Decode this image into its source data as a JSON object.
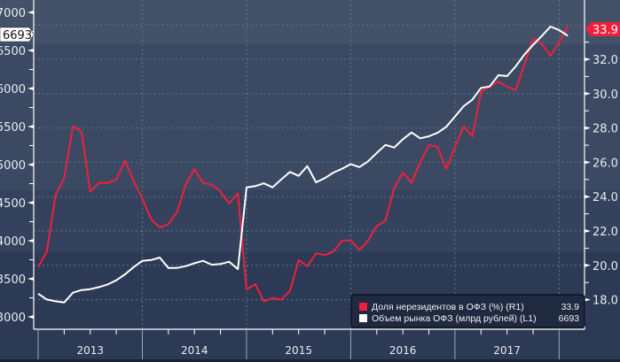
{
  "chart_data": {
    "type": "line",
    "title": "",
    "x_start": "2013-01",
    "x_frequency": "monthly",
    "x_tick_labels": [
      "2013",
      "2014",
      "2015",
      "2016",
      "2017"
    ],
    "left_axis": {
      "ylim": [
        2850,
        7150
      ],
      "ticks": [
        3000,
        3500,
        4000,
        4500,
        5000,
        5500,
        6000,
        6500,
        7000
      ]
    },
    "right_axis": {
      "ylim": [
        17.0,
        35.4
      ],
      "ticks": [
        18.0,
        20.0,
        22.0,
        24.0,
        26.0,
        28.0,
        30.0,
        32.0
      ]
    },
    "grid": true,
    "legend_position": "bottom-right",
    "series": [
      {
        "name": "Доля нерезидентов в ОФЗ (%) (R1)",
        "axis": "right",
        "color": "#f0203c",
        "last_value": "33.9",
        "values": [
          19.9,
          20.8,
          24.1,
          25.1,
          28.1,
          27.8,
          24.3,
          24.8,
          24.8,
          25.0,
          26.1,
          24.9,
          23.9,
          22.7,
          22.2,
          22.4,
          23.1,
          24.7,
          25.6,
          24.8,
          24.7,
          24.3,
          23.6,
          24.2,
          18.6,
          18.9,
          17.9,
          18.1,
          18.0,
          18.5,
          20.3,
          19.95,
          20.7,
          20.6,
          20.8,
          21.45,
          21.45,
          20.9,
          21.45,
          22.3,
          22.6,
          24.5,
          25.4,
          24.8,
          26.0,
          27.0,
          26.9,
          25.6,
          26.9,
          28.1,
          27.5,
          30.1,
          30.4,
          30.7,
          30.4,
          30.2,
          31.7,
          33.2,
          32.9,
          32.2,
          33.0,
          33.9
        ]
      },
      {
        "name": "Объем рынка ОФЗ (млрд рублей) (L1)",
        "axis": "left",
        "color": "#ffffff",
        "last_value": "6693",
        "values": [
          3305,
          3228,
          3205,
          3189,
          3317,
          3352,
          3364,
          3391,
          3426,
          3480,
          3558,
          3654,
          3736,
          3747,
          3779,
          3643,
          3643,
          3666,
          3705,
          3736,
          3685,
          3694,
          3724,
          3627,
          4701,
          4717,
          4755,
          4701,
          4806,
          4903,
          4852,
          4980,
          4767,
          4822,
          4895,
          4945,
          5007,
          4968,
          5043,
          5154,
          5259,
          5224,
          5333,
          5422,
          5345,
          5372,
          5418,
          5496,
          5631,
          5767,
          5852,
          6008,
          6027,
          6174,
          6163,
          6291,
          6445,
          6573,
          6690,
          6814,
          6767,
          6693
        ]
      }
    ]
  }
}
